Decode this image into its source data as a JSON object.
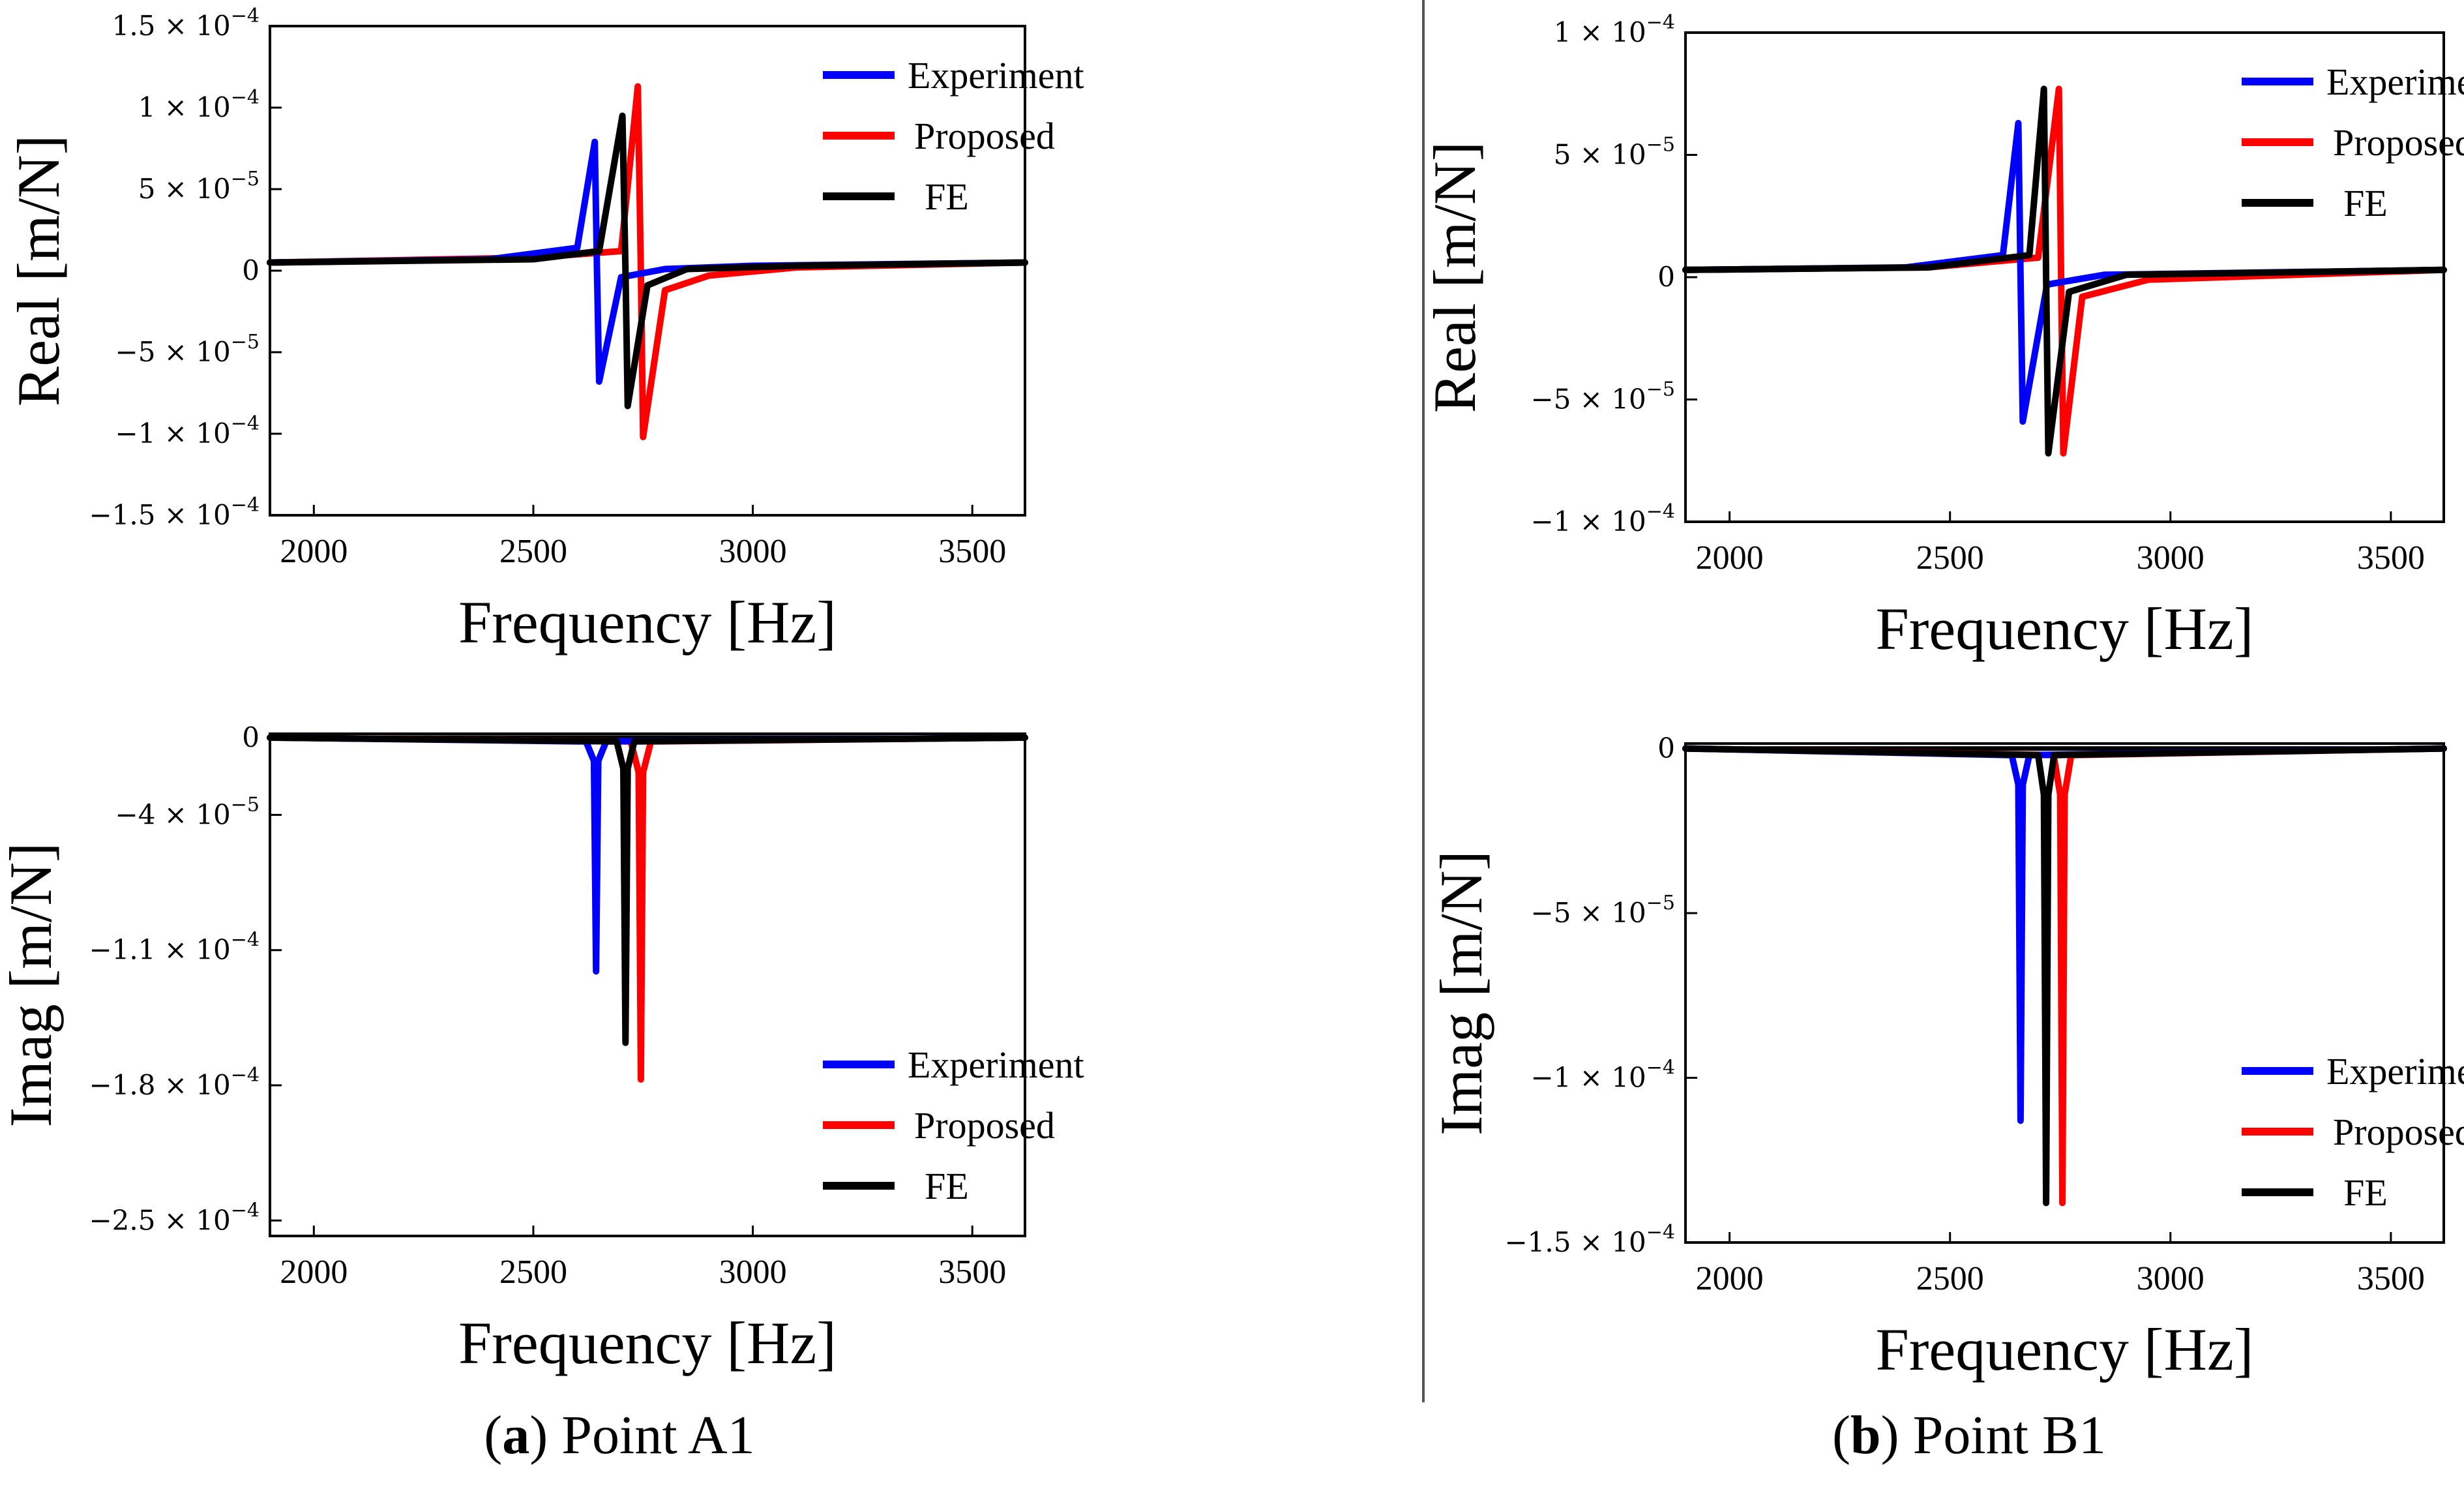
{
  "figure": {
    "captions": [
      {
        "label": "a",
        "text": " Point A1"
      },
      {
        "label": "b",
        "text": " Point B1"
      }
    ],
    "paren_open": "(",
    "paren_close": ")",
    "colors": {
      "Experiment": "#0000ff",
      "Proposed": "#ff0000",
      "FE": "#000000",
      "axis": "#000000",
      "divider": "#555555"
    }
  },
  "chart_data": [
    {
      "id": "a_real",
      "type": "line",
      "panel": "(a) Point A1",
      "xlabel": "Frequency [Hz]",
      "ylabel": "Real [m/N]",
      "xlim": [
        1900,
        3620
      ],
      "ylim": [
        -0.00015,
        0.00015
      ],
      "xticks": [
        2000,
        2500,
        3000,
        3500
      ],
      "yticks": [
        {
          "v": 0.00015,
          "m": "1.5",
          "e": "-4"
        },
        {
          "v": 0.0001,
          "m": "1",
          "e": "-4"
        },
        {
          "v": 5e-05,
          "m": "5",
          "e": "-5"
        },
        {
          "v": 0,
          "m": "0",
          "e": ""
        },
        {
          "v": -5e-05,
          "m": "-5",
          "e": "-5"
        },
        {
          "v": -0.0001,
          "m": "-1",
          "e": "-4"
        },
        {
          "v": -0.00015,
          "m": "-1.5",
          "e": "-4"
        }
      ],
      "legend_loc": "top-right",
      "series": [
        {
          "name": "Experiment",
          "x": [
            1900,
            2400,
            2600,
            2640,
            2645,
            2650,
            2700,
            2800,
            3000,
            3620
          ],
          "y": [
            5e-06,
            7e-06,
            1.4e-05,
            7.9e-05,
            0,
            -6.8e-05,
            -4e-06,
            1e-06,
            3e-06,
            5e-06
          ]
        },
        {
          "name": "Proposed",
          "x": [
            1900,
            2500,
            2700,
            2738,
            2745,
            2750,
            2800,
            2900,
            3100,
            3620
          ],
          "y": [
            5e-06,
            8e-06,
            1.2e-05,
            0.000113,
            0,
            -0.000102,
            -1.2e-05,
            -3e-06,
            2e-06,
            5e-06
          ]
        },
        {
          "name": "FE",
          "x": [
            1900,
            2500,
            2650,
            2703,
            2710,
            2715,
            2760,
            2850,
            3100,
            3620
          ],
          "y": [
            5e-06,
            7e-06,
            1.2e-05,
            9.5e-05,
            0,
            -8.3e-05,
            -9e-06,
            1e-06,
            3e-06,
            5e-06
          ]
        }
      ]
    },
    {
      "id": "b_real",
      "type": "line",
      "panel": "(b) Point B1",
      "xlabel": "Frequency [Hz]",
      "ylabel": "Real [m/N]",
      "xlim": [
        1900,
        3620
      ],
      "ylim": [
        -0.0001,
        0.0001
      ],
      "xticks": [
        2000,
        2500,
        3000,
        3500
      ],
      "yticks": [
        {
          "v": 0.0001,
          "m": "1",
          "e": "-4"
        },
        {
          "v": 5e-05,
          "m": "5",
          "e": "-5"
        },
        {
          "v": 0,
          "m": "0",
          "e": ""
        },
        {
          "v": -5e-05,
          "m": "-5",
          "e": "-5"
        },
        {
          "v": -0.0001,
          "m": "-1",
          "e": "-4"
        }
      ],
      "legend_loc": "top-right",
      "series": [
        {
          "name": "Experiment",
          "x": [
            1900,
            2400,
            2620,
            2655,
            2660,
            2665,
            2720,
            2850,
            3620
          ],
          "y": [
            3e-06,
            4e-06,
            9e-06,
            6.3e-05,
            0,
            -5.9e-05,
            -3e-06,
            1e-06,
            3e-06
          ]
        },
        {
          "name": "Proposed",
          "x": [
            1900,
            2450,
            2700,
            2747,
            2752,
            2757,
            2800,
            2950,
            3620
          ],
          "y": [
            3e-06,
            4e-06,
            8e-06,
            7.7e-05,
            0,
            -7.2e-05,
            -8e-06,
            -1e-06,
            3e-06
          ]
        },
        {
          "name": "FE",
          "x": [
            1900,
            2450,
            2680,
            2713,
            2718,
            2723,
            2770,
            2900,
            3620
          ],
          "y": [
            3e-06,
            4e-06,
            9e-06,
            7.7e-05,
            0,
            -7.2e-05,
            -6e-06,
            1e-06,
            3e-06
          ]
        }
      ]
    },
    {
      "id": "a_imag",
      "type": "line",
      "panel": "(a) Point A1",
      "xlabel": "Frequency [Hz]",
      "ylabel": "Imag [m/N]",
      "xlim": [
        1900,
        3620
      ],
      "ylim": [
        -0.000258,
        2e-06
      ],
      "xticks": [
        2000,
        2500,
        3000,
        3500
      ],
      "yticks": [
        {
          "v": 0,
          "m": "0",
          "e": ""
        },
        {
          "v": -4e-05,
          "m": "-4",
          "e": "-5"
        },
        {
          "v": -0.00011,
          "m": "-1.1",
          "e": "-4"
        },
        {
          "v": -0.00018,
          "m": "-1.8",
          "e": "-4"
        },
        {
          "v": -0.00025,
          "m": "-2.5",
          "e": "-4"
        }
      ],
      "legend_loc": "lower-right",
      "series": [
        {
          "name": "Experiment",
          "x": [
            1900,
            2620,
            2638,
            2643,
            2648,
            2666,
            3620
          ],
          "y": [
            0,
            -2e-06,
            -1.2e-05,
            -0.000121,
            -1.2e-05,
            -2e-06,
            0
          ]
        },
        {
          "name": "Proposed",
          "x": [
            1900,
            2722,
            2740,
            2745,
            2750,
            2768,
            3620
          ],
          "y": [
            0,
            -2e-06,
            -1.8e-05,
            -0.000177,
            -1.8e-05,
            -2e-06,
            0
          ]
        },
        {
          "name": "FE",
          "x": [
            1900,
            2690,
            2705,
            2710,
            2715,
            2730,
            3620
          ],
          "y": [
            0,
            -2e-06,
            -1.6e-05,
            -0.000158,
            -1.6e-05,
            -2e-06,
            0
          ]
        }
      ]
    },
    {
      "id": "b_imag",
      "type": "line",
      "panel": "(b) Point B1",
      "xlabel": "Frequency [Hz]",
      "ylabel": "Imag [m/N]",
      "xlim": [
        1900,
        3620
      ],
      "ylim": [
        -0.00015,
        1.5e-06
      ],
      "xticks": [
        2000,
        2500,
        3000,
        3500
      ],
      "yticks": [
        {
          "v": 0,
          "m": "0",
          "e": ""
        },
        {
          "v": -5e-05,
          "m": "-5",
          "e": "-5"
        },
        {
          "v": -0.0001,
          "m": "-1",
          "e": "-4"
        },
        {
          "v": -0.00015,
          "m": "-1.5",
          "e": "-4"
        }
      ],
      "legend_loc": "lower-right",
      "series": [
        {
          "name": "Experiment",
          "x": [
            1900,
            2640,
            2655,
            2660,
            2665,
            2680,
            3620
          ],
          "y": [
            0,
            -2e-06,
            -1.1e-05,
            -0.000113,
            -1.1e-05,
            -2e-06,
            0
          ]
        },
        {
          "name": "Proposed",
          "x": [
            1900,
            2735,
            2750,
            2755,
            2760,
            2775,
            3620
          ],
          "y": [
            0,
            -2e-06,
            -1.4e-05,
            -0.000138,
            -1.4e-05,
            -2e-06,
            0
          ]
        },
        {
          "name": "FE",
          "x": [
            1900,
            2700,
            2713,
            2718,
            2723,
            2736,
            3620
          ],
          "y": [
            0,
            -2e-06,
            -1.4e-05,
            -0.000138,
            -1.4e-05,
            -2e-06,
            0
          ]
        }
      ]
    }
  ]
}
